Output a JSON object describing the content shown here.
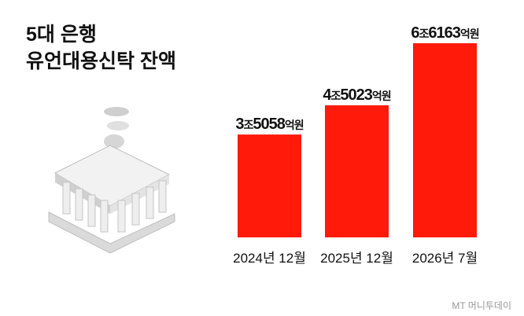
{
  "chart_data": {
    "type": "bar",
    "title_lines": [
      "5대 은행",
      "유언대용신탁 잔액"
    ],
    "categories": [
      "2024년 12월",
      "2025년 12월",
      "2026년 7월"
    ],
    "values": [
      35058,
      45023,
      66163
    ],
    "value_labels": [
      "3조5058억원",
      "4조5023억원",
      "6조6163억원"
    ],
    "color": "#ff1a0a",
    "watermark": "MT 머니투데이"
  }
}
